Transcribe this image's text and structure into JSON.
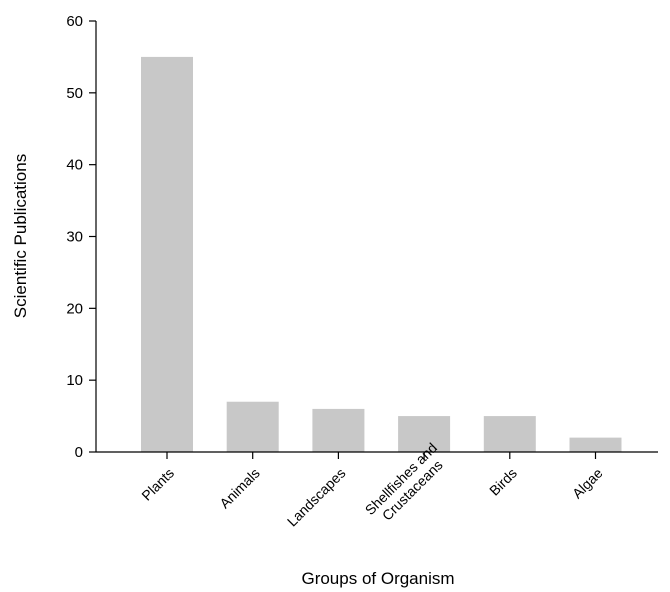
{
  "chart_data": {
    "type": "bar",
    "title": "",
    "xlabel": "Groups of Organism",
    "ylabel": "Scientific Publications",
    "categories": [
      "Plants",
      "Animals",
      "Landscapes",
      "Shellfishes and Crustaceans",
      "Birds",
      "Algae"
    ],
    "category_label_lines": [
      [
        "Plants"
      ],
      [
        "Animals"
      ],
      [
        "Landscapes"
      ],
      [
        "Shellfishes and",
        "Crustaceans"
      ],
      [
        "Birds"
      ],
      [
        "Algae"
      ]
    ],
    "values": [
      55,
      7,
      6,
      5,
      5,
      2
    ],
    "ylim": [
      0,
      60
    ],
    "yticks": [
      "0",
      "10",
      "20",
      "30",
      "40",
      "50",
      "60"
    ],
    "grid": false,
    "legend": "none",
    "bar_color": "#c8c8c8"
  }
}
